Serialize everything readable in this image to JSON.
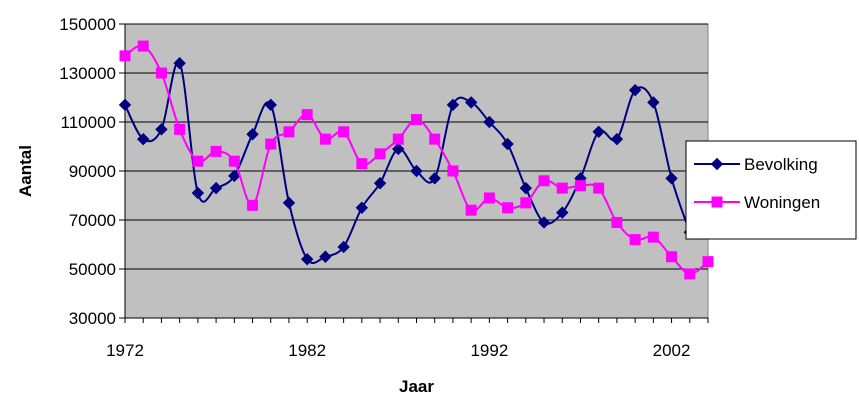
{
  "chart_data": {
    "type": "line",
    "title": "",
    "xlabel": "Jaar",
    "ylabel": "Aantal",
    "xlim": [
      1972,
      2004
    ],
    "ylim": [
      30000,
      150000
    ],
    "x_ticks": [
      1972,
      1982,
      1992,
      2002
    ],
    "y_ticks": [
      30000,
      50000,
      70000,
      90000,
      110000,
      130000,
      150000
    ],
    "grid": true,
    "background_color": "#c0c0c0",
    "legend_position": "right",
    "x": [
      1972,
      1973,
      1974,
      1975,
      1976,
      1977,
      1978,
      1979,
      1980,
      1981,
      1982,
      1983,
      1984,
      1985,
      1986,
      1987,
      1988,
      1989,
      1990,
      1991,
      1992,
      1993,
      1994,
      1995,
      1996,
      1997,
      1998,
      1999,
      2000,
      2001,
      2002,
      2003,
      2004
    ],
    "series": [
      {
        "name": "Bevolking",
        "color": "#000080",
        "marker": "diamond",
        "x": [
          1972,
          1973,
          1974,
          1975,
          1976,
          1977,
          1978,
          1979,
          1980,
          1981,
          1982,
          1983,
          1984,
          1985,
          1986,
          1987,
          1988,
          1989,
          1990,
          1991,
          1992,
          1993,
          1994,
          1995,
          1996,
          1997,
          1998,
          1999,
          2000,
          2001,
          2002,
          2003
        ],
        "values": [
          117000,
          103000,
          107000,
          134000,
          81000,
          83000,
          88000,
          105000,
          117000,
          77000,
          54000,
          55000,
          59000,
          75000,
          85000,
          99000,
          90000,
          87000,
          117000,
          118000,
          110000,
          101000,
          83000,
          69000,
          73000,
          87000,
          106000,
          103000,
          123000,
          118000,
          87000,
          65000
        ]
      },
      {
        "name": "Woningen",
        "color": "#ff00ff",
        "marker": "square",
        "x": [
          1972,
          1973,
          1974,
          1975,
          1976,
          1977,
          1978,
          1979,
          1980,
          1981,
          1982,
          1983,
          1984,
          1985,
          1986,
          1987,
          1988,
          1989,
          1990,
          1991,
          1992,
          1993,
          1994,
          1995,
          1996,
          1997,
          1998,
          1999,
          2000,
          2001,
          2002,
          2003,
          2004
        ],
        "values": [
          137000,
          141000,
          130000,
          107000,
          94000,
          98000,
          94000,
          76000,
          101000,
          106000,
          113000,
          103000,
          106000,
          93000,
          97000,
          103000,
          111000,
          103000,
          90000,
          74000,
          79000,
          75000,
          77000,
          86000,
          83000,
          84000,
          83000,
          69000,
          62000,
          63000,
          55000,
          48000,
          53000
        ]
      }
    ]
  }
}
